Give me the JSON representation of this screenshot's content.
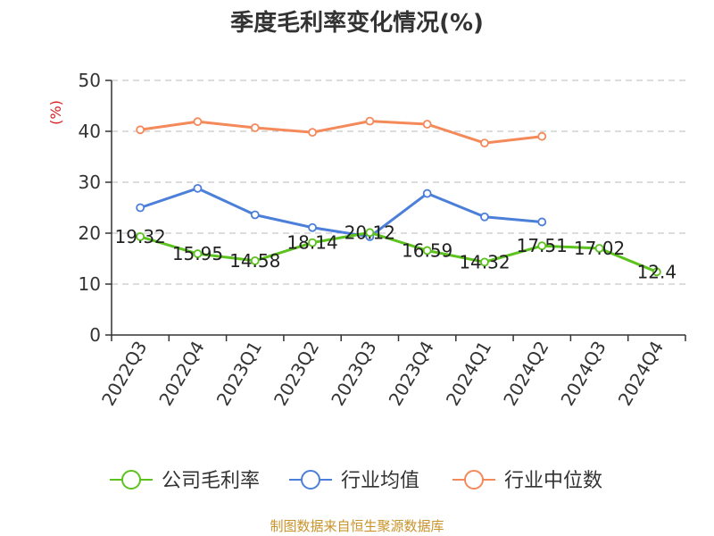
{
  "source_note": "制图数据来自恒生聚源数据库",
  "colors": {
    "company": "#5cc21e",
    "industry_avg": "#4b7fd9",
    "industry_median": "#f4895a",
    "unit": "#d62020",
    "source": "#c8932a",
    "axis": "#333333",
    "grid": "#bbbbbb"
  },
  "chart_data": {
    "type": "line",
    "title": "季度毛利率变化情况(%)",
    "ylabel": "(%)",
    "xlabel": "",
    "ylim": [
      0,
      50
    ],
    "yticks": [
      0,
      10,
      20,
      30,
      40,
      50
    ],
    "grid": true,
    "legend_position": "bottom",
    "categories": [
      "2022Q3",
      "2022Q4",
      "2023Q1",
      "2023Q2",
      "2023Q3",
      "2023Q4",
      "2024Q1",
      "2024Q2",
      "2024Q3",
      "2024Q4"
    ],
    "series": [
      {
        "name": "公司毛利率",
        "color_key": "company",
        "values": [
          19.32,
          15.95,
          14.58,
          18.14,
          20.12,
          16.59,
          14.32,
          17.51,
          17.02,
          12.4
        ],
        "labels": [
          "19.32",
          "15.95",
          "14.58",
          "18.14",
          "20.12",
          "16.59",
          "14.32",
          "17.51",
          "17.02",
          "12.4"
        ]
      },
      {
        "name": "行业均值",
        "color_key": "industry_avg",
        "values": [
          25.0,
          28.8,
          23.6,
          21.1,
          19.3,
          27.8,
          23.2,
          22.2,
          null,
          null
        ]
      },
      {
        "name": "行业中位数",
        "color_key": "industry_median",
        "values": [
          40.3,
          41.9,
          40.7,
          39.8,
          42.0,
          41.4,
          37.7,
          39.0,
          null,
          null
        ]
      }
    ]
  }
}
